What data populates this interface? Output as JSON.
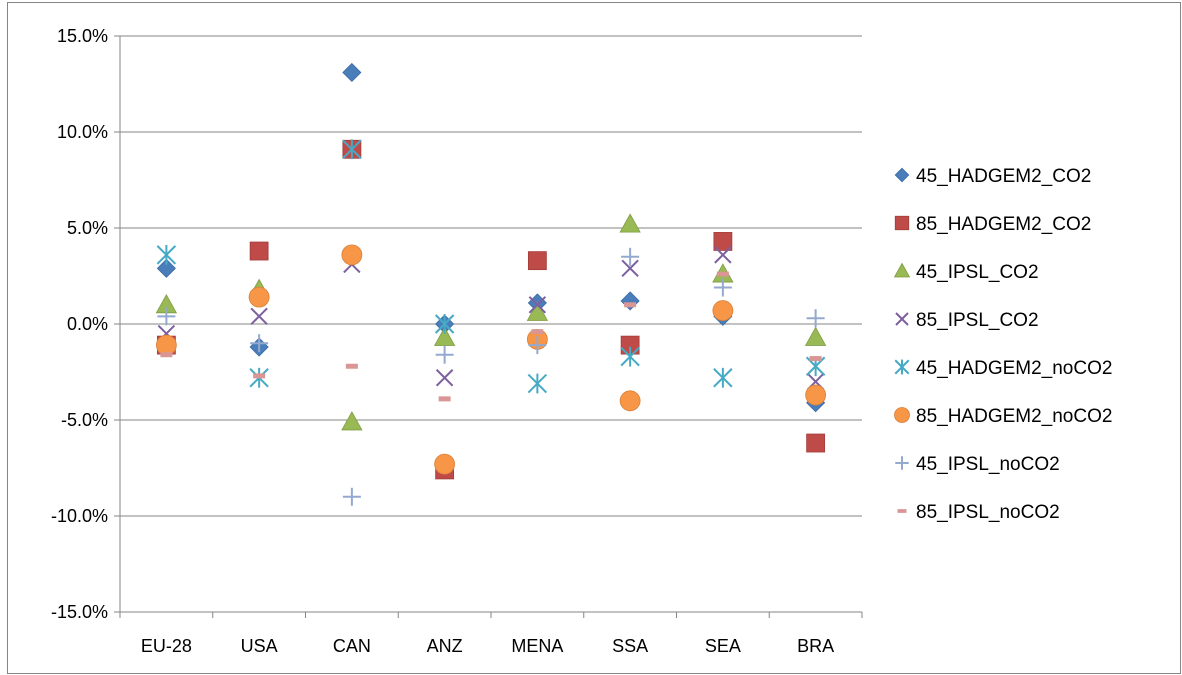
{
  "chart_data": {
    "type": "scatter",
    "title": "",
    "xlabel": "",
    "ylabel": "",
    "categories": [
      "EU-28",
      "USA",
      "CAN",
      "ANZ",
      "MENA",
      "SSA",
      "SEA",
      "BRA"
    ],
    "ylim": [
      -0.15,
      0.15
    ],
    "y_ticks": [
      "15.0%",
      "10.0%",
      "5.0%",
      "0.0%",
      "-5.0%",
      "-10.0%",
      "-15.0%"
    ],
    "grid": true,
    "legend_position": "right",
    "series": [
      {
        "name": "45_HADGEM2_CO2",
        "marker": "diamond",
        "color": "#4a7ebb",
        "values": [
          0.029,
          -0.012,
          0.131,
          0.0,
          0.011,
          0.012,
          0.004,
          -0.041
        ]
      },
      {
        "name": "85_HADGEM2_CO2",
        "marker": "square",
        "color": "#be4b48",
        "values": [
          -0.011,
          0.038,
          0.091,
          -0.076,
          0.033,
          -0.011,
          0.043,
          -0.062
        ]
      },
      {
        "name": "45_IPSL_CO2",
        "marker": "triangle",
        "color": "#98b954",
        "values": [
          0.01,
          0.018,
          -0.051,
          -0.007,
          0.006,
          0.052,
          0.026,
          -0.007
        ]
      },
      {
        "name": "85_IPSL_CO2",
        "marker": "x",
        "color": "#7d60a0",
        "values": [
          -0.005,
          0.004,
          0.031,
          -0.028,
          0.01,
          0.029,
          0.036,
          -0.03
        ]
      },
      {
        "name": "45_HADGEM2_noCO2",
        "marker": "star",
        "color": "#46aac5",
        "values": [
          0.036,
          -0.028,
          0.091,
          0.0,
          -0.031,
          -0.017,
          -0.028,
          -0.022
        ]
      },
      {
        "name": "85_HADGEM2_noCO2",
        "marker": "circle",
        "color": "#f79646",
        "values": [
          -0.011,
          0.014,
          0.036,
          -0.073,
          -0.008,
          -0.04,
          0.007,
          -0.037
        ]
      },
      {
        "name": "45_IPSL_noCO2",
        "marker": "plus",
        "color": "#93a9cf",
        "values": [
          0.004,
          -0.01,
          -0.09,
          -0.016,
          -0.011,
          0.035,
          0.019,
          0.003
        ]
      },
      {
        "name": "85_IPSL_noCO2",
        "marker": "dash",
        "color": "#d99694",
        "values": [
          -0.016,
          -0.027,
          -0.022,
          -0.039,
          -0.004,
          0.01,
          0.026,
          -0.018
        ]
      }
    ]
  }
}
